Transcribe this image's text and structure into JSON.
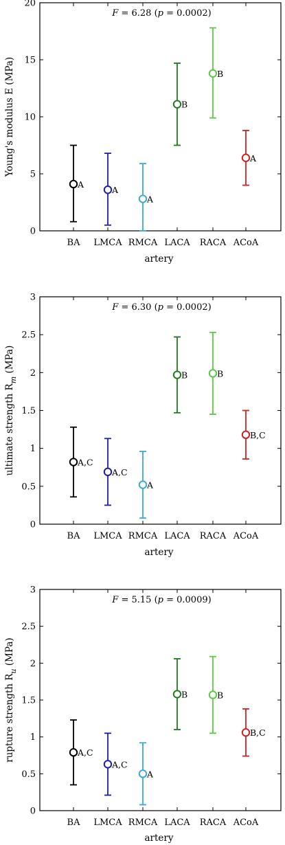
{
  "chart_data": [
    {
      "type": "scatter",
      "subtype": "error-bar",
      "stat_prefix": "F",
      "stat_value": "= 6.28 (",
      "stat_p": "p",
      "stat_rest": "= 0.0002)",
      "ylabel": "Young's modulus E (MPa)",
      "xlabel": "artery",
      "ylim": [
        0,
        20
      ],
      "yticks": [
        0,
        5,
        10,
        15,
        20
      ],
      "ytick_labels": [
        "0",
        "5",
        "10",
        "15",
        "20"
      ],
      "categories": [
        "BA",
        "LMCA",
        "RMCA",
        "LACA",
        "RACA",
        "ACoA"
      ],
      "mean": [
        4.1,
        3.6,
        2.8,
        11.1,
        13.8,
        6.4
      ],
      "lower": [
        0.8,
        0.5,
        0.0,
        7.5,
        9.9,
        4.0
      ],
      "upper": [
        7.5,
        6.8,
        5.9,
        14.7,
        17.8,
        8.8
      ],
      "groups": [
        "A",
        "A",
        "A",
        "B",
        "B",
        "A"
      ],
      "colors": [
        "#000000",
        "#1f1fa0",
        "#3da7d6",
        "#1e7a1e",
        "#5cc845",
        "#cc2222"
      ]
    },
    {
      "type": "scatter",
      "subtype": "error-bar",
      "stat_prefix": "F",
      "stat_value": "= 6.30 (",
      "stat_p": "p",
      "stat_rest": "= 0.0002)",
      "ylabel": "ultimate strength R_m (MPa)",
      "ylabel_main": "ultimate strength R",
      "ylabel_sub": "m",
      "ylabel_unit": " (MPa)",
      "xlabel": "artery",
      "ylim": [
        0,
        3
      ],
      "yticks": [
        0,
        0.5,
        1,
        1.5,
        2,
        2.5,
        3
      ],
      "ytick_labels": [
        "0",
        "0.5",
        "1",
        "1.5",
        "2",
        "2.5",
        "3"
      ],
      "categories": [
        "BA",
        "LMCA",
        "RMCA",
        "LACA",
        "RACA",
        "ACoA"
      ],
      "mean": [
        0.82,
        0.69,
        0.52,
        1.97,
        1.99,
        1.18
      ],
      "lower": [
        0.36,
        0.25,
        0.08,
        1.47,
        1.45,
        0.86
      ],
      "upper": [
        1.28,
        1.13,
        0.96,
        2.47,
        2.53,
        1.5
      ],
      "groups": [
        "A,C",
        "A,C",
        "A",
        "B",
        "B",
        "B,C"
      ],
      "colors": [
        "#000000",
        "#1f1fa0",
        "#3da7d6",
        "#1e7a1e",
        "#5cc845",
        "#cc2222"
      ]
    },
    {
      "type": "scatter",
      "subtype": "error-bar",
      "stat_prefix": "F",
      "stat_value": "= 5.15 (",
      "stat_p": "p",
      "stat_rest": "= 0.0009)",
      "ylabel": "rupture strength R_u (MPa)",
      "ylabel_main": "rupture strength R",
      "ylabel_sub": "u",
      "ylabel_unit": " (MPa)",
      "xlabel": "artery",
      "ylim": [
        0,
        3
      ],
      "yticks": [
        0,
        0.5,
        1,
        1.5,
        2,
        2.5,
        3
      ],
      "ytick_labels": [
        "0",
        "0.5",
        "1",
        "1.5",
        "2",
        "2.5",
        "3"
      ],
      "categories": [
        "BA",
        "LMCA",
        "RMCA",
        "LACA",
        "RACA",
        "ACoA"
      ],
      "mean": [
        0.79,
        0.63,
        0.5,
        1.58,
        1.57,
        1.06
      ],
      "lower": [
        0.35,
        0.21,
        0.08,
        1.1,
        1.05,
        0.74
      ],
      "upper": [
        1.23,
        1.05,
        0.92,
        2.06,
        2.09,
        1.38
      ],
      "groups": [
        "A,C",
        "A,C",
        "A",
        "B",
        "B",
        "B,C"
      ],
      "colors": [
        "#000000",
        "#1f1fa0",
        "#3da7d6",
        "#1e7a1e",
        "#5cc845",
        "#cc2222"
      ]
    }
  ]
}
